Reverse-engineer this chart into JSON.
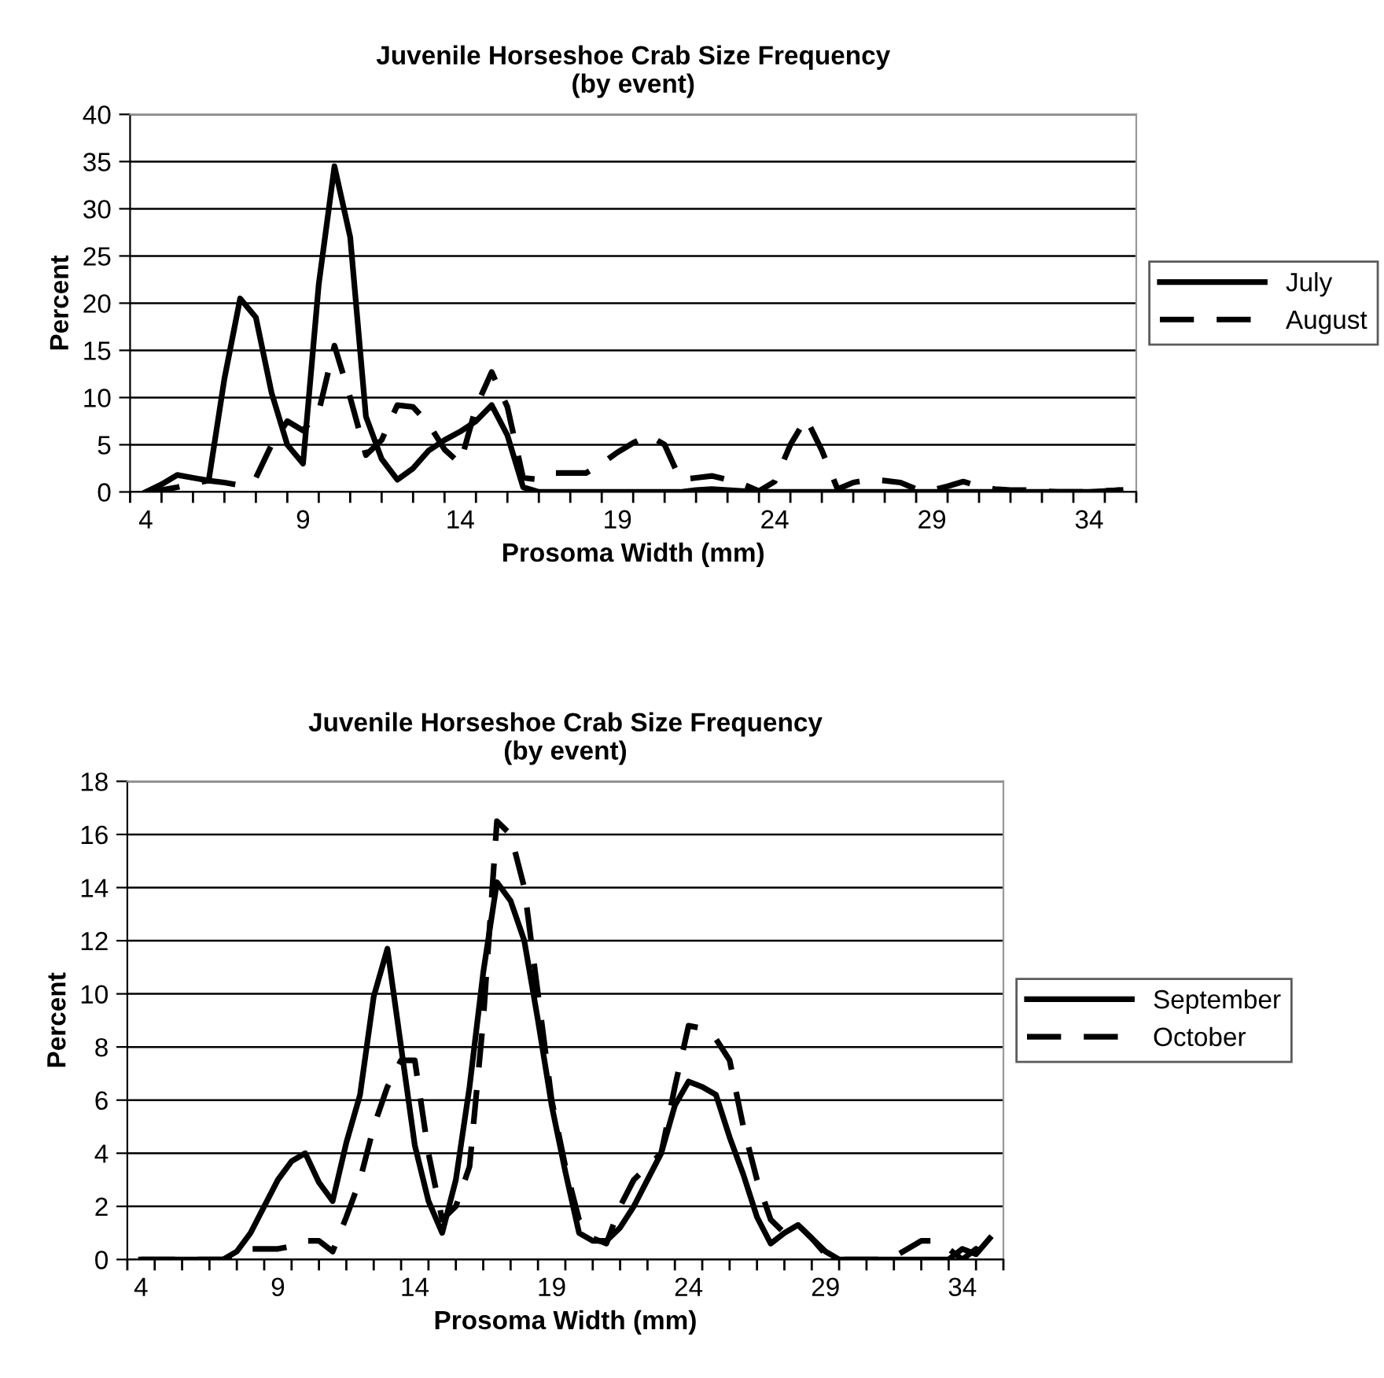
{
  "chart_data": [
    {
      "type": "line",
      "title": "Juvenile Horseshoe Crab Size Frequency\n(by event)",
      "xlabel": "Prosoma Width (mm)",
      "ylabel": "Percent",
      "x": [
        4,
        4.5,
        5,
        5.5,
        6,
        6.5,
        7,
        7.5,
        8,
        8.5,
        9,
        9.5,
        10,
        10.5,
        11,
        11.5,
        12,
        12.5,
        13,
        13.5,
        14,
        14.5,
        15,
        15.5,
        16,
        16.5,
        17,
        17.5,
        18,
        18.5,
        19,
        19.5,
        20,
        20.5,
        21,
        21.5,
        22,
        22.5,
        23,
        23.5,
        24,
        24.5,
        25,
        25.5,
        26,
        26.5,
        27,
        27.5,
        28,
        28.5,
        29,
        29.5,
        30,
        30.5,
        31,
        31.5,
        32,
        32.5,
        33,
        33.5,
        34,
        34.5,
        35
      ],
      "series": [
        {
          "name": "July",
          "color": "#000000",
          "line_style": "solid",
          "values": [
            0,
            0.8,
            1.8,
            1.5,
            1.2,
            12,
            20.5,
            18.5,
            10.5,
            5,
            3,
            22,
            34.5,
            27,
            8,
            3.5,
            1.3,
            2.5,
            4.4,
            5.5,
            6.4,
            7.5,
            9.2,
            6,
            0.5,
            0,
            0,
            0,
            0,
            0,
            0,
            0,
            0,
            0,
            0,
            0.2,
            0.3,
            0.2,
            0.1,
            0,
            0,
            0,
            0,
            0,
            0,
            0,
            0,
            0,
            0,
            0,
            0,
            0,
            0,
            0,
            0,
            0,
            0,
            0,
            0,
            0,
            0,
            0.1,
            0.2
          ]
        },
        {
          "name": "August",
          "color": "#000000",
          "line_style": "dashed",
          "values": [
            0,
            0.2,
            0.5,
            0.9,
            1.2,
            1,
            0.7,
            1.5,
            5,
            7.5,
            6.5,
            8.5,
            15.5,
            10,
            3.9,
            5.5,
            9.2,
            9,
            7.2,
            4.5,
            3,
            9,
            12.7,
            9,
            1.5,
            1.3,
            2,
            2,
            2,
            3,
            4.2,
            5.2,
            6,
            5,
            1.3,
            1.5,
            1.7,
            1.3,
            0.8,
            0.1,
            1.1,
            5,
            7.8,
            4.4,
            0.3,
            1,
            1.3,
            1.2,
            1,
            0.3,
            0.2,
            0.6,
            1.1,
            0.6,
            0.3,
            0.2,
            0.2,
            0.1,
            0,
            0,
            0,
            0.1,
            0.2
          ]
        }
      ],
      "xlim": [
        3.5,
        35.5
      ],
      "xticks": [
        4,
        9,
        14,
        19,
        24,
        29,
        34,
        {
          "value": 3.5,
          "label": null
        },
        {
          "value": 4.5,
          "label": null
        },
        {
          "value": 5.5,
          "label": null
        },
        {
          "value": 6.5,
          "label": null
        },
        {
          "value": 7.5,
          "label": null
        },
        {
          "value": 8.5,
          "label": null
        },
        {
          "value": 9.5,
          "label": null
        },
        {
          "value": 10.5,
          "label": null
        },
        {
          "value": 11.5,
          "label": null
        },
        {
          "value": 12.5,
          "label": null
        },
        {
          "value": 13.5,
          "label": null
        },
        {
          "value": 14.5,
          "label": null
        },
        {
          "value": 15.5,
          "label": null
        },
        {
          "value": 16.5,
          "label": null
        },
        {
          "value": 17.5,
          "label": null
        },
        {
          "value": 18.5,
          "label": null
        },
        {
          "value": 19.5,
          "label": null
        },
        {
          "value": 20.5,
          "label": null
        },
        {
          "value": 21.5,
          "label": null
        },
        {
          "value": 22.5,
          "label": null
        },
        {
          "value": 23.5,
          "label": null
        },
        {
          "value": 24.5,
          "label": null
        },
        {
          "value": 25.5,
          "label": null
        },
        {
          "value": 26.5,
          "label": null
        },
        {
          "value": 27.5,
          "label": null
        },
        {
          "value": 28.5,
          "label": null
        },
        {
          "value": 29.5,
          "label": null
        },
        {
          "value": 30.5,
          "label": null
        },
        {
          "value": 31.5,
          "label": null
        },
        {
          "value": 32.5,
          "label": null
        },
        {
          "value": 33.5,
          "label": null
        },
        {
          "value": 34.5,
          "label": null
        },
        {
          "value": 35.5,
          "label": null
        }
      ],
      "ylim": [
        0,
        40
      ],
      "yticks": [
        0,
        5,
        10,
        15,
        20,
        25,
        30,
        35,
        40
      ],
      "grid": "y",
      "legend": "right",
      "marker": "none"
    },
    {
      "type": "line",
      "title": "Juvenile Horseshoe Crab Size Frequency\n(by event)",
      "xlabel": "Prosoma Width (mm)",
      "ylabel": "Percent",
      "x": [
        4,
        4.5,
        5,
        5.5,
        6,
        6.5,
        7,
        7.5,
        8,
        8.5,
        9,
        9.5,
        10,
        10.5,
        11,
        11.5,
        12,
        12.5,
        13,
        13.5,
        14,
        14.5,
        15,
        15.5,
        16,
        16.5,
        17,
        17.5,
        18,
        18.5,
        19,
        19.5,
        20,
        20.5,
        21,
        21.5,
        22,
        22.5,
        23,
        23.5,
        24,
        24.5,
        25,
        25.5,
        26,
        26.5,
        27,
        27.5,
        28,
        28.5,
        29,
        29.5,
        30,
        30.5,
        31,
        31.5,
        32,
        32.5,
        33,
        33.5,
        34,
        34.5,
        35
      ],
      "series": [
        {
          "name": "September",
          "color": "#000000",
          "line_style": "solid",
          "values": [
            0,
            0,
            0,
            0,
            0,
            0,
            0,
            0.3,
            1,
            2,
            3,
            3.7,
            4,
            2.9,
            2.2,
            4.4,
            6.2,
            9.9,
            11.7,
            8,
            4.3,
            2.2,
            1,
            3,
            6.5,
            10.8,
            14.2,
            13.5,
            12,
            9,
            5.8,
            3.3,
            1,
            0.7,
            0.7,
            1.2,
            2,
            3,
            4,
            5.8,
            6.7,
            6.5,
            6.2,
            4.6,
            3.2,
            1.6,
            0.6,
            1,
            1.3,
            0.8,
            0.3,
            0,
            0,
            0,
            0,
            0,
            0,
            0,
            0,
            0,
            0.4,
            0.2,
            0.8
          ]
        },
        {
          "name": "October",
          "color": "#000000",
          "line_style": "dashed",
          "values": [
            0,
            0,
            0,
            0,
            0,
            0,
            0,
            0.2,
            0.4,
            0.4,
            0.4,
            0.5,
            0.7,
            0.7,
            0.3,
            1.6,
            3,
            5,
            6.5,
            7.5,
            7.5,
            4,
            1.5,
            2,
            3.5,
            9,
            16.5,
            16,
            14,
            10,
            6,
            3.5,
            1.5,
            0.8,
            0.6,
            2,
            3,
            3.5,
            4,
            6.5,
            8.8,
            8.7,
            8.3,
            7.5,
            5,
            3,
            1.5,
            1,
            1.3,
            0.8,
            0.2,
            0,
            0,
            0,
            0,
            0.1,
            0.4,
            0.7,
            0.7,
            0.4,
            0,
            0.4,
            0
          ]
        }
      ],
      "xlim": [
        3.5,
        35.5
      ],
      "xticks": [
        4,
        9,
        14,
        19,
        24,
        29,
        34,
        {
          "value": 3.5,
          "label": null
        },
        {
          "value": 4.5,
          "label": null
        },
        {
          "value": 5.5,
          "label": null
        },
        {
          "value": 6.5,
          "label": null
        },
        {
          "value": 7.5,
          "label": null
        },
        {
          "value": 8.5,
          "label": null
        },
        {
          "value": 9.5,
          "label": null
        },
        {
          "value": 10.5,
          "label": null
        },
        {
          "value": 11.5,
          "label": null
        },
        {
          "value": 12.5,
          "label": null
        },
        {
          "value": 13.5,
          "label": null
        },
        {
          "value": 14.5,
          "label": null
        },
        {
          "value": 15.5,
          "label": null
        },
        {
          "value": 16.5,
          "label": null
        },
        {
          "value": 17.5,
          "label": null
        },
        {
          "value": 18.5,
          "label": null
        },
        {
          "value": 19.5,
          "label": null
        },
        {
          "value": 20.5,
          "label": null
        },
        {
          "value": 21.5,
          "label": null
        },
        {
          "value": 22.5,
          "label": null
        },
        {
          "value": 23.5,
          "label": null
        },
        {
          "value": 24.5,
          "label": null
        },
        {
          "value": 25.5,
          "label": null
        },
        {
          "value": 26.5,
          "label": null
        },
        {
          "value": 27.5,
          "label": null
        },
        {
          "value": 28.5,
          "label": null
        },
        {
          "value": 29.5,
          "label": null
        },
        {
          "value": 30.5,
          "label": null
        },
        {
          "value": 31.5,
          "label": null
        },
        {
          "value": 32.5,
          "label": null
        },
        {
          "value": 33.5,
          "label": null
        },
        {
          "value": 34.5,
          "label": null
        },
        {
          "value": 35.5,
          "label": null
        }
      ],
      "ylim": [
        0,
        18
      ],
      "yticks": [
        0,
        2,
        4,
        6,
        8,
        10,
        12,
        14,
        16,
        18
      ],
      "grid": "y",
      "legend": "right",
      "marker": "none"
    }
  ]
}
